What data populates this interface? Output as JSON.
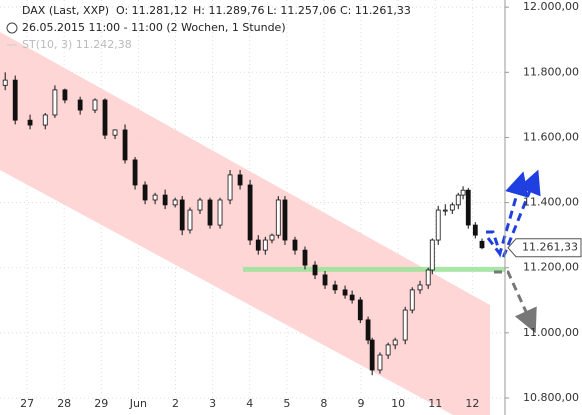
{
  "chart_data": {
    "type": "candlestick",
    "instrument": "DAX (Last, XXP)",
    "ohlc": [
      "O: 11.281,12",
      "H: 11.289,76",
      "L: 11.257,06",
      "C: 11.261,33"
    ],
    "period": "26.05.2015 11:00 - 11:00 (2 Wochen, 1 Stunde)",
    "indicator": "ST(10, 3) 11.242,38",
    "candles": {
      "x": [
        -0.59,
        -0.32,
        0.08,
        0.49,
        0.75,
        1.02,
        1.43,
        1.83,
        2.1,
        2.37,
        2.64,
        2.91,
        3.18,
        3.45,
        3.72,
        3.99,
        4.18,
        4.39,
        4.66,
        4.93,
        5.2,
        5.47,
        5.74,
        6.01,
        6.23,
        6.42,
        6.6,
        6.77,
        6.95,
        7.22,
        7.49,
        7.76,
        8.03,
        8.3,
        8.57,
        8.76,
        8.98,
        9.19,
        9.3,
        9.51,
        9.73,
        9.92,
        10.19,
        10.38,
        10.59,
        10.81,
        10.92,
        11.08,
        11.27,
        11.46,
        11.62,
        11.75,
        11.89,
        12.08,
        12.26
      ],
      "open": [
        11760,
        11776,
        11653,
        11638,
        11669,
        11746,
        11715,
        11684,
        11715,
        11607,
        11623,
        11531,
        11454,
        11408,
        11423,
        11393,
        11408,
        11316,
        11377,
        11408,
        11331,
        11408,
        11485,
        11454,
        11285,
        11254,
        11285,
        11300,
        11408,
        11285,
        11254,
        11208,
        11178,
        11147,
        11132,
        11116,
        11101,
        11040,
        10978,
        10886,
        10932,
        10963,
        10978,
        11070,
        11132,
        11147,
        11193,
        11285,
        11377,
        11377,
        11393,
        11423,
        11438,
        11331,
        11281.12
      ],
      "high": [
        11800,
        11790,
        11670,
        11675,
        11760,
        11750,
        11725,
        11720,
        11720,
        11625,
        11640,
        11540,
        11465,
        11430,
        11440,
        11415,
        11420,
        11385,
        11415,
        11415,
        11415,
        11500,
        11500,
        11470,
        11300,
        11295,
        11305,
        11420,
        11420,
        11295,
        11265,
        11220,
        11190,
        11160,
        11145,
        11130,
        11110,
        11050,
        10985,
        10940,
        10970,
        10985,
        11080,
        11140,
        11160,
        11200,
        11290,
        11390,
        11395,
        11400,
        11430,
        11450,
        11445,
        11340,
        11289.76
      ],
      "low": [
        11745,
        11640,
        11625,
        11625,
        11660,
        11705,
        11670,
        11675,
        11595,
        11595,
        11520,
        11440,
        11395,
        11395,
        11380,
        11385,
        11300,
        11305,
        11365,
        11320,
        11320,
        11395,
        11440,
        11270,
        11240,
        11240,
        11275,
        11290,
        11270,
        11240,
        11195,
        11165,
        11135,
        11120,
        11105,
        11090,
        11030,
        10965,
        10870,
        10875,
        10920,
        10950,
        10965,
        11060,
        11120,
        11135,
        11180,
        11270,
        11360,
        11365,
        11380,
        11410,
        11320,
        11290,
        11257.06
      ],
      "close": [
        11776,
        11653,
        11638,
        11669,
        11746,
        11715,
        11684,
        11715,
        11607,
        11623,
        11531,
        11454,
        11408,
        11423,
        11393,
        11408,
        11316,
        11377,
        11408,
        11331,
        11408,
        11485,
        11454,
        11285,
        11254,
        11285,
        11300,
        11408,
        11285,
        11254,
        11208,
        11178,
        11147,
        11132,
        11116,
        11101,
        11040,
        10978,
        10886,
        10932,
        10963,
        10978,
        11070,
        11132,
        11147,
        11193,
        11285,
        11377,
        11377,
        11393,
        11423,
        11438,
        11331,
        11300,
        11261.33
      ]
    },
    "last_price": {
      "value": 11261.33,
      "label": "11.261,33"
    },
    "support": 11195,
    "xlim": [
      -0.73,
      12.88
    ],
    "xticks": [
      {
        "value": 0,
        "label": "27"
      },
      {
        "value": 1,
        "label": "28"
      },
      {
        "value": 2,
        "label": "29"
      },
      {
        "value": 3,
        "label": "Jun"
      },
      {
        "value": 4,
        "label": "2"
      },
      {
        "value": 5,
        "label": "3"
      },
      {
        "value": 6,
        "label": "4"
      },
      {
        "value": 7,
        "label": "5"
      },
      {
        "value": 8,
        "label": "8"
      },
      {
        "value": 9,
        "label": "9"
      },
      {
        "value": 10,
        "label": "10"
      },
      {
        "value": 11,
        "label": "11"
      },
      {
        "value": 12,
        "label": "12"
      }
    ],
    "ylim": [
      10800,
      12022
    ],
    "yticks": [
      {
        "value": 10800,
        "label": "10.800,00"
      },
      {
        "value": 11000,
        "label": "11.000,00"
      },
      {
        "value": 11200,
        "label": "11.200,00"
      },
      {
        "value": 11400,
        "label": "11.400,00"
      },
      {
        "value": 11600,
        "label": "11.600,00"
      },
      {
        "value": 11800,
        "label": "11.800,00"
      },
      {
        "value": 12000,
        "label": "12.000,00"
      }
    ],
    "grid": true
  }
}
